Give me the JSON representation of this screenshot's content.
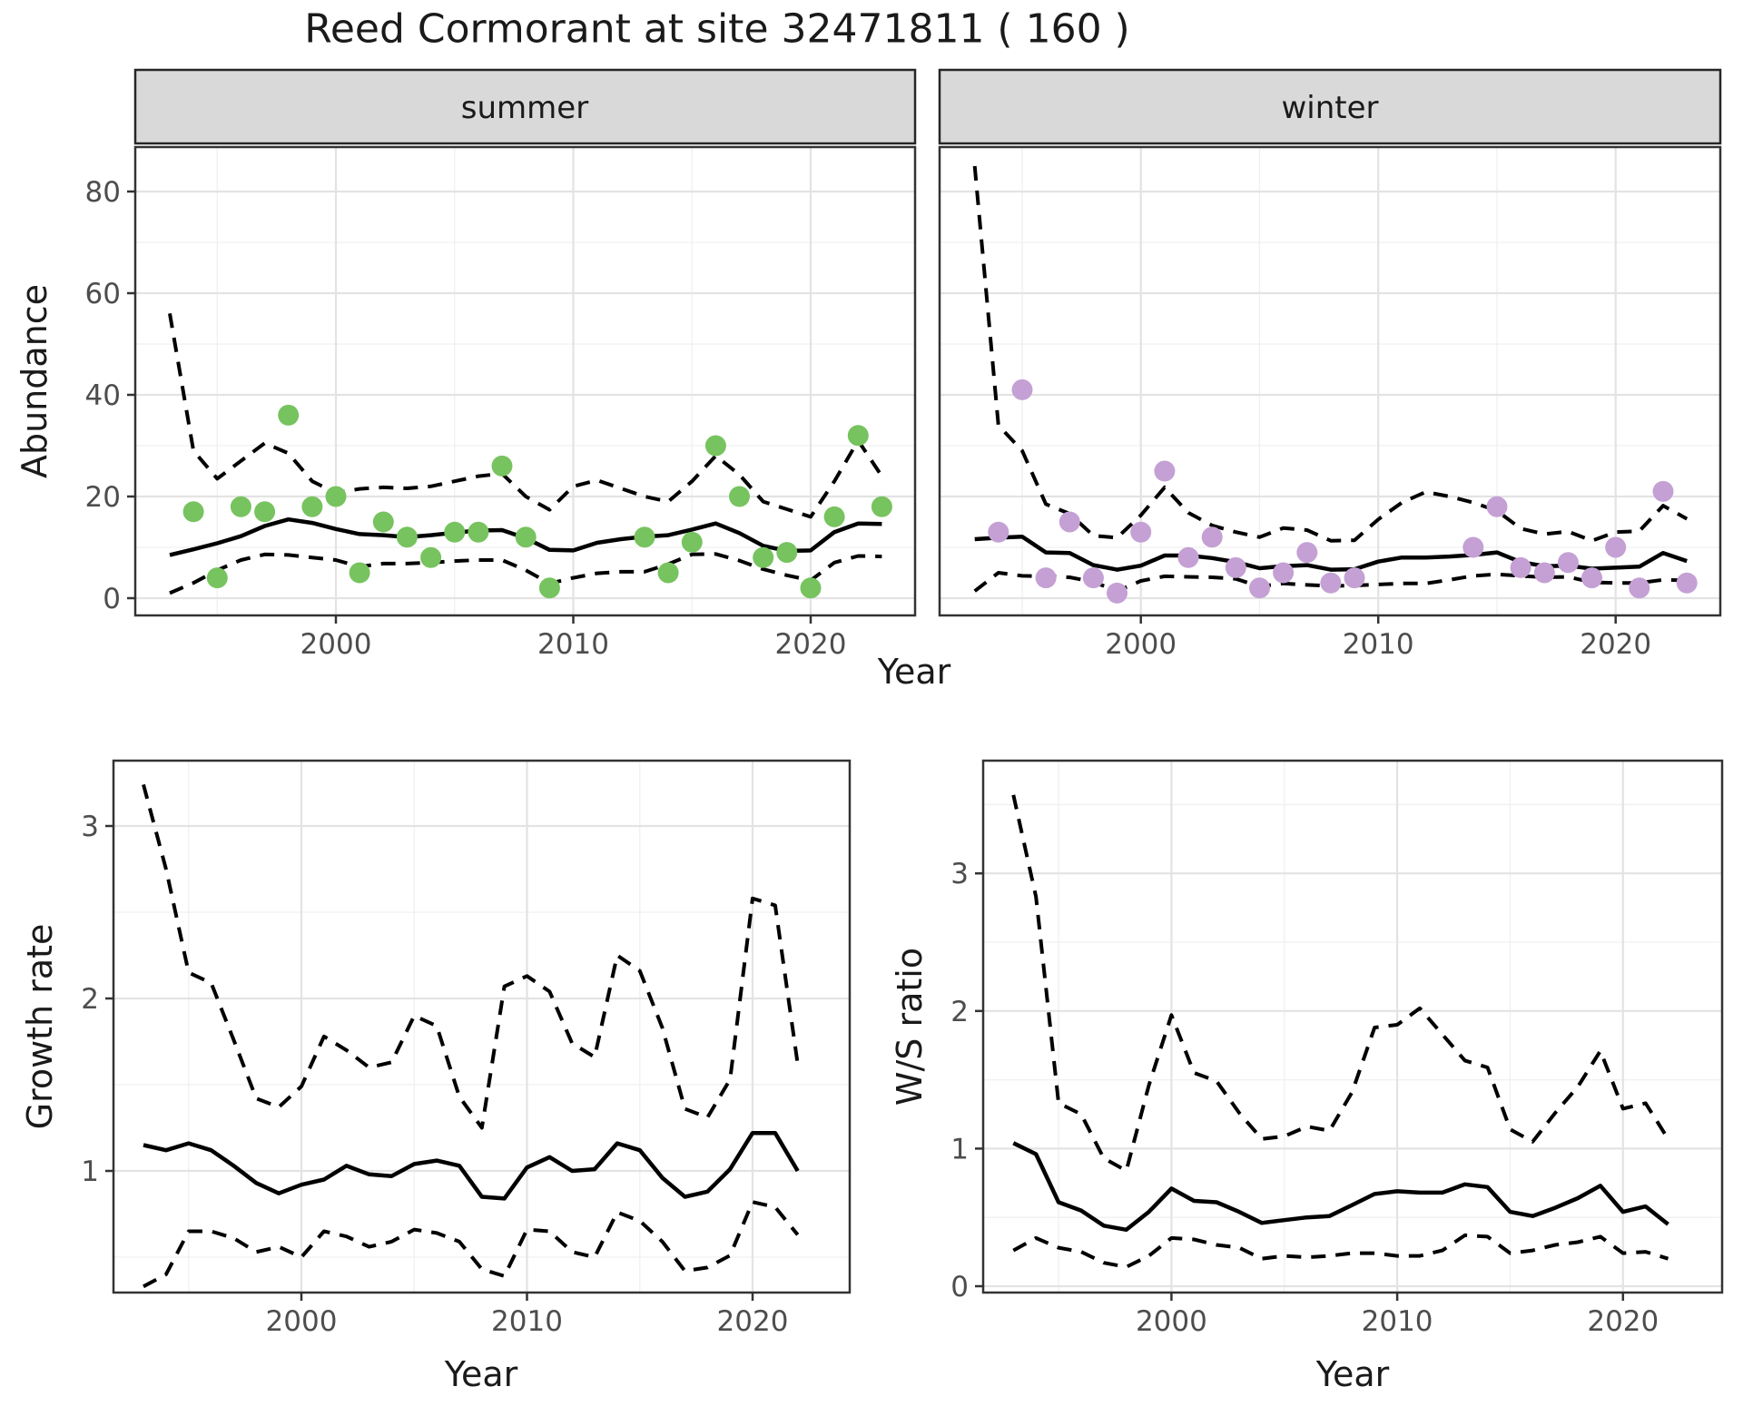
{
  "title": "Reed Cormorant at site 32471811 ( 160 )",
  "labels": {
    "facet_summer": "summer",
    "facet_winter": "winter",
    "y_top": "Abundance",
    "x_top": "Year",
    "y_growth": "Growth rate",
    "x_growth": "Year",
    "y_ws": "W/S ratio",
    "x_ws": "Year"
  },
  "colors": {
    "summer_point": "#77c35f",
    "winter_point": "#c4a0d4",
    "line": "#000000",
    "grid_major": "#e3e3e3",
    "grid_minor": "#f0f0f0",
    "panel_border": "#333333",
    "strip_bg": "#d9d9d9",
    "strip_border": "#262626",
    "tick_label": "#4d4d4d",
    "tick_mark": "#333333",
    "text": "#1a1a1a",
    "background": "#ffffff"
  },
  "chart_data": [
    {
      "id": "abundance_summer",
      "type": "line",
      "facet": "summer",
      "ylabel": "Abundance",
      "xlabel": "Year",
      "xlim": [
        1991.5,
        2024.4
      ],
      "ylim": [
        -3.4,
        88.7
      ],
      "x_ticks": [
        2000,
        2010,
        2020
      ],
      "x_tick_labels": [
        "2000",
        "2010",
        "2020"
      ],
      "x_minor": [
        1995,
        2005,
        2015
      ],
      "y_ticks": [
        0,
        20,
        40,
        60,
        80
      ],
      "y_tick_labels": [
        "0",
        "20",
        "40",
        "60",
        "80"
      ],
      "y_minor": [
        10,
        30,
        50,
        70
      ],
      "show_y_labels": true,
      "years": [
        1993,
        1994,
        1995,
        1996,
        1997,
        1998,
        1999,
        2000,
        2001,
        2002,
        2003,
        2004,
        2005,
        2006,
        2007,
        2008,
        2009,
        2010,
        2011,
        2012,
        2013,
        2014,
        2015,
        2016,
        2017,
        2018,
        2019,
        2020,
        2021,
        2022,
        2023
      ],
      "fit": [
        8.5,
        9.6,
        10.8,
        12.2,
        14.2,
        15.5,
        14.8,
        13.6,
        12.6,
        12.4,
        12.0,
        12.4,
        12.9,
        13.3,
        13.4,
        11.8,
        9.5,
        9.4,
        10.9,
        11.6,
        12.1,
        12.4,
        13.5,
        14.7,
        12.8,
        10.3,
        9.3,
        9.4,
        13.0,
        14.7,
        14.6
      ],
      "upper": [
        56,
        29,
        23.5,
        27,
        30.5,
        28.5,
        23,
        20.7,
        21.5,
        21.8,
        21.6,
        22,
        23,
        24,
        24.5,
        20,
        17.4,
        22,
        23.2,
        21.6,
        20,
        19,
        23,
        28,
        24.3,
        19,
        17.5,
        16,
        23,
        31,
        24
      ],
      "lower": [
        1.0,
        3.0,
        5.5,
        7.5,
        8.6,
        8.5,
        8.0,
        7.5,
        6.2,
        6.8,
        6.8,
        7.0,
        7.3,
        7.5,
        7.5,
        5.5,
        2.9,
        4.0,
        4.9,
        5.2,
        5.2,
        6.7,
        8.6,
        8.7,
        7.4,
        5.7,
        4.5,
        3.5,
        7.0,
        8.3,
        8.2
      ],
      "points": [
        [
          1994,
          17
        ],
        [
          1995,
          4
        ],
        [
          1996,
          18
        ],
        [
          1997,
          17
        ],
        [
          1998,
          36
        ],
        [
          1999,
          18
        ],
        [
          2000,
          20
        ],
        [
          2001,
          5
        ],
        [
          2002,
          15
        ],
        [
          2003,
          12
        ],
        [
          2004,
          8
        ],
        [
          2005,
          13
        ],
        [
          2006,
          13
        ],
        [
          2007,
          26
        ],
        [
          2008,
          12
        ],
        [
          2009,
          2
        ],
        [
          2013,
          12
        ],
        [
          2014,
          5
        ],
        [
          2015,
          11
        ],
        [
          2016,
          30
        ],
        [
          2017,
          20
        ],
        [
          2018,
          8
        ],
        [
          2019,
          9
        ],
        [
          2020,
          2
        ],
        [
          2021,
          16
        ],
        [
          2022,
          32
        ],
        [
          2023,
          18
        ]
      ]
    },
    {
      "id": "abundance_winter",
      "type": "line",
      "facet": "winter",
      "ylabel": "Abundance",
      "xlabel": "Year",
      "xlim": [
        1991.5,
        2024.4
      ],
      "ylim": [
        -3.4,
        88.7
      ],
      "x_ticks": [
        2000,
        2010,
        2020
      ],
      "x_tick_labels": [
        "2000",
        "2010",
        "2020"
      ],
      "x_minor": [
        1995,
        2005,
        2015
      ],
      "y_ticks": [
        0,
        20,
        40,
        60,
        80
      ],
      "y_tick_labels": [
        "0",
        "20",
        "40",
        "60",
        "80"
      ],
      "y_minor": [
        10,
        30,
        50,
        70
      ],
      "show_y_labels": false,
      "years": [
        1993,
        1994,
        1995,
        1996,
        1997,
        1998,
        1999,
        2000,
        2001,
        2002,
        2003,
        2004,
        2005,
        2006,
        2007,
        2008,
        2009,
        2010,
        2011,
        2012,
        2013,
        2014,
        2015,
        2016,
        2017,
        2018,
        2019,
        2020,
        2021,
        2022,
        2023
      ],
      "fit": [
        11.6,
        11.9,
        12.1,
        9.0,
        8.9,
        6.5,
        5.6,
        6.4,
        8.4,
        8.4,
        7.9,
        7.1,
        5.9,
        6.3,
        6.5,
        5.6,
        5.7,
        7.2,
        8.0,
        8.0,
        8.2,
        8.5,
        9.0,
        7.1,
        6.3,
        6.4,
        5.8,
        6.0,
        6.2,
        8.9,
        7.3
      ],
      "upper": [
        85,
        34,
        29,
        18.5,
        16.6,
        12.3,
        11.9,
        16.3,
        21.8,
        16.8,
        14.3,
        13.0,
        12.0,
        13.8,
        13.4,
        11.3,
        11.4,
        15.5,
        18.8,
        20.9,
        20.0,
        18.8,
        17.2,
        13.7,
        12.6,
        13.1,
        11.3,
        13.0,
        13.2,
        18.2,
        15.6
      ],
      "lower": [
        1.4,
        5.0,
        4.4,
        4.3,
        4.1,
        3.2,
        1.4,
        3.4,
        4.3,
        4.2,
        4.1,
        3.8,
        2.3,
        2.9,
        2.6,
        2.4,
        2.5,
        2.7,
        2.9,
        2.9,
        3.6,
        4.4,
        4.7,
        4.4,
        4.1,
        4.2,
        3.1,
        3.0,
        3.0,
        3.6,
        3.5
      ],
      "points": [
        [
          1994,
          13
        ],
        [
          1995,
          41
        ],
        [
          1996,
          4
        ],
        [
          1997,
          15
        ],
        [
          1998,
          4
        ],
        [
          1999,
          1
        ],
        [
          2000,
          13
        ],
        [
          2001,
          25
        ],
        [
          2002,
          8
        ],
        [
          2003,
          12
        ],
        [
          2004,
          6
        ],
        [
          2005,
          2
        ],
        [
          2006,
          5
        ],
        [
          2007,
          9
        ],
        [
          2008,
          3
        ],
        [
          2009,
          4
        ],
        [
          2014,
          10
        ],
        [
          2015,
          18
        ],
        [
          2016,
          6
        ],
        [
          2017,
          5
        ],
        [
          2018,
          7
        ],
        [
          2019,
          4
        ],
        [
          2020,
          10
        ],
        [
          2021,
          2
        ],
        [
          2022,
          21
        ],
        [
          2023,
          3
        ]
      ]
    },
    {
      "id": "growth_rate",
      "type": "line",
      "facet": null,
      "ylabel": "Growth rate",
      "xlabel": "Year",
      "xlim": [
        1991.7,
        2024.3
      ],
      "ylim": [
        0.22,
        3.38
      ],
      "x_ticks": [
        2000,
        2010,
        2020
      ],
      "x_tick_labels": [
        "2000",
        "2010",
        "2020"
      ],
      "x_minor": [
        1995,
        2005,
        2015
      ],
      "y_ticks": [
        1,
        2,
        3
      ],
      "y_tick_labels": [
        "1",
        "2",
        "3"
      ],
      "y_minor": [
        0.5,
        1.5,
        2.5
      ],
      "show_y_labels": true,
      "years": [
        1993,
        1994,
        1995,
        1996,
        1997,
        1998,
        1999,
        2000,
        2001,
        2002,
        2003,
        2004,
        2005,
        2006,
        2007,
        2008,
        2009,
        2010,
        2011,
        2012,
        2013,
        2014,
        2015,
        2016,
        2017,
        2018,
        2019,
        2020,
        2021,
        2022
      ],
      "fit": [
        1.15,
        1.12,
        1.16,
        1.12,
        1.03,
        0.93,
        0.87,
        0.92,
        0.95,
        1.03,
        0.98,
        0.97,
        1.04,
        1.06,
        1.03,
        0.85,
        0.84,
        1.02,
        1.08,
        1.0,
        1.01,
        1.16,
        1.12,
        0.96,
        0.85,
        0.88,
        1.01,
        1.22,
        1.22,
        1.0
      ],
      "upper": [
        3.24,
        2.75,
        2.15,
        2.09,
        1.76,
        1.42,
        1.37,
        1.49,
        1.78,
        1.7,
        1.6,
        1.63,
        1.9,
        1.84,
        1.43,
        1.25,
        2.07,
        2.13,
        2.04,
        1.74,
        1.66,
        2.25,
        2.16,
        1.83,
        1.36,
        1.31,
        1.53,
        2.58,
        2.54,
        1.62
      ],
      "lower": [
        0.33,
        0.4,
        0.65,
        0.65,
        0.61,
        0.53,
        0.56,
        0.5,
        0.65,
        0.62,
        0.56,
        0.59,
        0.66,
        0.64,
        0.59,
        0.43,
        0.39,
        0.66,
        0.65,
        0.53,
        0.5,
        0.76,
        0.71,
        0.59,
        0.42,
        0.44,
        0.51,
        0.82,
        0.79,
        0.63
      ],
      "points": []
    },
    {
      "id": "ws_ratio",
      "type": "line",
      "facet": null,
      "ylabel": "W/S ratio",
      "xlabel": "Year",
      "xlim": [
        1991.6,
        2024.5
      ],
      "ylim": [
        -0.05,
        3.82
      ],
      "x_ticks": [
        2000,
        2010,
        2020
      ],
      "x_tick_labels": [
        "2000",
        "2010",
        "2020"
      ],
      "x_minor": [
        1995,
        2005,
        2015
      ],
      "y_ticks": [
        0,
        1,
        2,
        3
      ],
      "y_tick_labels": [
        "0",
        "1",
        "2",
        "3"
      ],
      "y_minor": [
        0.5,
        1.5,
        2.5,
        3.5
      ],
      "show_y_labels": true,
      "years": [
        1993,
        1994,
        1995,
        1996,
        1997,
        1998,
        1999,
        2000,
        2001,
        2002,
        2003,
        2004,
        2005,
        2006,
        2007,
        2008,
        2009,
        2010,
        2011,
        2012,
        2013,
        2014,
        2015,
        2016,
        2017,
        2018,
        2019,
        2020,
        2021,
        2022
      ],
      "fit": [
        1.04,
        0.96,
        0.61,
        0.55,
        0.44,
        0.41,
        0.54,
        0.71,
        0.62,
        0.61,
        0.54,
        0.46,
        0.48,
        0.5,
        0.51,
        0.59,
        0.67,
        0.69,
        0.68,
        0.68,
        0.74,
        0.72,
        0.54,
        0.51,
        0.57,
        0.64,
        0.73,
        0.54,
        0.58,
        0.45
      ],
      "upper": [
        3.57,
        2.83,
        1.33,
        1.25,
        0.93,
        0.84,
        1.46,
        1.97,
        1.55,
        1.49,
        1.26,
        1.07,
        1.09,
        1.16,
        1.13,
        1.41,
        1.88,
        1.9,
        2.02,
        1.83,
        1.64,
        1.59,
        1.14,
        1.05,
        1.26,
        1.45,
        1.71,
        1.29,
        1.33,
        1.07
      ],
      "lower": [
        0.26,
        0.35,
        0.28,
        0.25,
        0.17,
        0.14,
        0.22,
        0.35,
        0.34,
        0.3,
        0.28,
        0.2,
        0.22,
        0.21,
        0.22,
        0.24,
        0.24,
        0.22,
        0.22,
        0.26,
        0.37,
        0.36,
        0.24,
        0.26,
        0.3,
        0.32,
        0.36,
        0.24,
        0.25,
        0.2
      ]
    }
  ]
}
